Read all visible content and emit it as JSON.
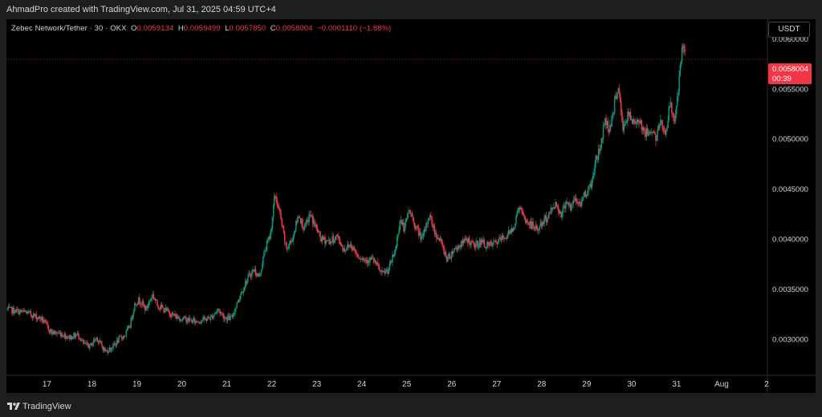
{
  "header": {
    "attribution": "AhmadPro created with TradingView.com, Jul 31, 2025 04:59 UTC+4"
  },
  "legend": {
    "symbol": "Zebec Network/Tether · 30 · OKX",
    "open_label": "O",
    "open": "0.0059134",
    "high_label": "H",
    "high": "0.0059499",
    "low_label": "L",
    "low": "0.0057850",
    "close_label": "C",
    "close": "0.0058004",
    "change": "−0.0001110 (−1.88%)"
  },
  "currency_button": "USDT",
  "price_tag": {
    "price": "0.0058004",
    "countdown": "00:39"
  },
  "footer": {
    "brand": "TradingView"
  },
  "colors": {
    "up": "#089981",
    "down": "#f23645",
    "background": "#000000",
    "text": "#d1d4dc"
  },
  "chart_data": {
    "type": "candlestick",
    "timeframe": "30",
    "exchange": "OKX",
    "ylim": [
      0.00265,
      0.0062
    ],
    "y_ticks": [
      "0.0030000",
      "0.0035000",
      "0.0040000",
      "0.0045000",
      "0.0050000",
      "0.0055000",
      "0.0060000"
    ],
    "x_ticks": [
      "17",
      "18",
      "19",
      "20",
      "21",
      "22",
      "23",
      "24",
      "25",
      "26",
      "27",
      "28",
      "29",
      "30",
      "31",
      "Aug",
      "2"
    ],
    "x_range_days": [
      16.1,
      33.0
    ],
    "last_price": 0.0058004,
    "anchors": [
      [
        16.12,
        0.0033
      ],
      [
        16.35,
        0.00328
      ],
      [
        16.55,
        0.00327
      ],
      [
        16.65,
        0.00325
      ],
      [
        16.9,
        0.0032
      ],
      [
        17.1,
        0.00307
      ],
      [
        17.3,
        0.00306
      ],
      [
        17.5,
        0.00302
      ],
      [
        17.7,
        0.00305
      ],
      [
        17.8,
        0.00296
      ],
      [
        17.95,
        0.00293
      ],
      [
        18.1,
        0.00302
      ],
      [
        18.3,
        0.00288
      ],
      [
        18.45,
        0.00292
      ],
      [
        18.6,
        0.003
      ],
      [
        18.75,
        0.00305
      ],
      [
        18.85,
        0.00315
      ],
      [
        18.95,
        0.00335
      ],
      [
        19.05,
        0.0034
      ],
      [
        19.2,
        0.0033
      ],
      [
        19.35,
        0.00345
      ],
      [
        19.45,
        0.00335
      ],
      [
        19.6,
        0.0033
      ],
      [
        19.75,
        0.00326
      ],
      [
        19.9,
        0.00322
      ],
      [
        20.1,
        0.0032
      ],
      [
        20.3,
        0.00318
      ],
      [
        20.5,
        0.0032
      ],
      [
        20.65,
        0.00322
      ],
      [
        20.8,
        0.0033
      ],
      [
        20.95,
        0.00322
      ],
      [
        21.1,
        0.00321
      ],
      [
        21.3,
        0.00345
      ],
      [
        21.45,
        0.0036
      ],
      [
        21.6,
        0.0037
      ],
      [
        21.72,
        0.00362
      ],
      [
        21.85,
        0.0039
      ],
      [
        21.97,
        0.00405
      ],
      [
        22.07,
        0.00445
      ],
      [
        22.18,
        0.00425
      ],
      [
        22.32,
        0.0039
      ],
      [
        22.45,
        0.004
      ],
      [
        22.6,
        0.00425
      ],
      [
        22.72,
        0.0041
      ],
      [
        22.85,
        0.00425
      ],
      [
        22.95,
        0.00415
      ],
      [
        23.1,
        0.004
      ],
      [
        23.3,
        0.00398
      ],
      [
        23.45,
        0.00403
      ],
      [
        23.6,
        0.0039
      ],
      [
        23.75,
        0.00395
      ],
      [
        23.9,
        0.00385
      ],
      [
        24.05,
        0.0038
      ],
      [
        24.25,
        0.0038
      ],
      [
        24.45,
        0.00365
      ],
      [
        24.6,
        0.0037
      ],
      [
        24.75,
        0.0039
      ],
      [
        24.85,
        0.0042
      ],
      [
        24.95,
        0.0041
      ],
      [
        25.05,
        0.0043
      ],
      [
        25.2,
        0.00412
      ],
      [
        25.35,
        0.004
      ],
      [
        25.5,
        0.00425
      ],
      [
        25.62,
        0.00408
      ],
      [
        25.75,
        0.00398
      ],
      [
        25.9,
        0.0038
      ],
      [
        26.05,
        0.0039
      ],
      [
        26.2,
        0.00395
      ],
      [
        26.35,
        0.004
      ],
      [
        26.5,
        0.00393
      ],
      [
        26.65,
        0.00398
      ],
      [
        26.8,
        0.00393
      ],
      [
        26.95,
        0.00396
      ],
      [
        27.1,
        0.004
      ],
      [
        27.25,
        0.00405
      ],
      [
        27.4,
        0.00415
      ],
      [
        27.5,
        0.00435
      ],
      [
        27.6,
        0.0042
      ],
      [
        27.75,
        0.00415
      ],
      [
        27.9,
        0.0041
      ],
      [
        28.05,
        0.00418
      ],
      [
        28.2,
        0.00428
      ],
      [
        28.3,
        0.00436
      ],
      [
        28.45,
        0.00425
      ],
      [
        28.55,
        0.0044
      ],
      [
        28.65,
        0.0043
      ],
      [
        28.72,
        0.0044
      ],
      [
        28.85,
        0.00435
      ],
      [
        28.95,
        0.00445
      ],
      [
        29.1,
        0.00455
      ],
      [
        29.2,
        0.0048
      ],
      [
        29.3,
        0.0049
      ],
      [
        29.4,
        0.0052
      ],
      [
        29.5,
        0.0051
      ],
      [
        29.6,
        0.0053
      ],
      [
        29.7,
        0.00555
      ],
      [
        29.8,
        0.0051
      ],
      [
        29.92,
        0.00525
      ],
      [
        30.05,
        0.00515
      ],
      [
        30.15,
        0.00522
      ],
      [
        30.3,
        0.00505
      ],
      [
        30.45,
        0.0051
      ],
      [
        30.55,
        0.005
      ],
      [
        30.65,
        0.0052
      ],
      [
        30.75,
        0.00505
      ],
      [
        30.85,
        0.00535
      ],
      [
        30.95,
        0.0052
      ],
      [
        31.02,
        0.0054
      ],
      [
        31.1,
        0.0058
      ],
      [
        31.14,
        0.00592
      ],
      [
        31.2,
        0.0058
      ]
    ]
  }
}
